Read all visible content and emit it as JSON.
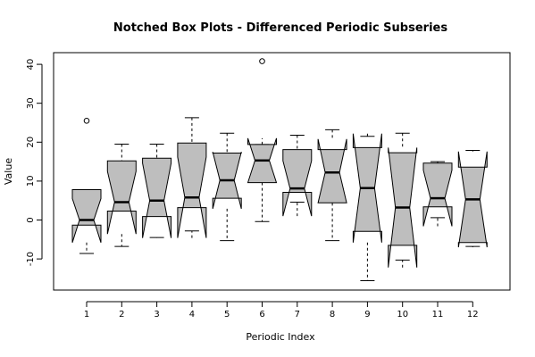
{
  "chart_data": {
    "type": "boxplot",
    "notched": true,
    "title": "Notched Box Plots - Differenced Periodic Subseries",
    "xlabel": "Periodic Index",
    "ylabel": "Value",
    "ylim": [
      -18,
      43
    ],
    "yticks": [
      -10,
      0,
      10,
      20,
      30,
      40
    ],
    "categories": [
      "1",
      "2",
      "3",
      "4",
      "5",
      "6",
      "7",
      "8",
      "9",
      "10",
      "11",
      "12"
    ],
    "box_color": "#bebebe",
    "boxes": [
      {
        "lower_whisker": -8.6,
        "q1": -1.3,
        "median": 0.0,
        "q3": 7.8,
        "upper_whisker": 7.8,
        "notch_low": -5.8,
        "notch_high": 5.5,
        "outliers": [
          25.5
        ]
      },
      {
        "lower_whisker": -6.8,
        "q1": 2.3,
        "median": 4.6,
        "q3": 15.2,
        "upper_whisker": 19.5,
        "notch_low": -3.6,
        "notch_high": 12.5,
        "outliers": []
      },
      {
        "lower_whisker": -4.5,
        "q1": 0.9,
        "median": 5.0,
        "q3": 15.9,
        "upper_whisker": 19.5,
        "notch_low": -4.6,
        "notch_high": 14.6,
        "outliers": []
      },
      {
        "lower_whisker": -2.8,
        "q1": 3.2,
        "median": 5.8,
        "q3": 19.8,
        "upper_whisker": 26.3,
        "notch_low": -4.6,
        "notch_high": 16.2,
        "outliers": []
      },
      {
        "lower_whisker": -5.3,
        "q1": 5.6,
        "median": 10.2,
        "q3": 17.2,
        "upper_whisker": 22.3,
        "notch_low": 2.9,
        "notch_high": 17.5,
        "outliers": []
      },
      {
        "lower_whisker": -0.4,
        "q1": 9.6,
        "median": 15.3,
        "q3": 19.4,
        "upper_whisker": 19.4,
        "notch_low": 9.6,
        "notch_high": 21.0,
        "outliers": [
          40.8
        ]
      },
      {
        "lower_whisker": 4.6,
        "q1": 7.1,
        "median": 8.1,
        "q3": 18.1,
        "upper_whisker": 21.8,
        "notch_low": 1.0,
        "notch_high": 15.2,
        "outliers": []
      },
      {
        "lower_whisker": -5.3,
        "q1": 4.4,
        "median": 12.2,
        "q3": 18.1,
        "upper_whisker": 23.2,
        "notch_low": 4.4,
        "notch_high": 20.8,
        "outliers": []
      },
      {
        "lower_whisker": -15.6,
        "q1": -2.9,
        "median": 8.2,
        "q3": 18.6,
        "upper_whisker": 21.5,
        "notch_low": -5.8,
        "notch_high": 22.2,
        "outliers": []
      },
      {
        "lower_whisker": -10.3,
        "q1": -6.5,
        "median": 3.2,
        "q3": 17.3,
        "upper_whisker": 22.3,
        "notch_low": -12.2,
        "notch_high": 18.6,
        "outliers": []
      },
      {
        "lower_whisker": 0.6,
        "q1": 3.4,
        "median": 5.6,
        "q3": 14.6,
        "upper_whisker": 15.0,
        "notch_low": -1.6,
        "notch_high": 12.8,
        "outliers": []
      },
      {
        "lower_whisker": -6.8,
        "q1": -5.8,
        "median": 5.3,
        "q3": 13.6,
        "upper_whisker": 17.9,
        "notch_low": -7.0,
        "notch_high": 17.6,
        "outliers": []
      }
    ]
  }
}
